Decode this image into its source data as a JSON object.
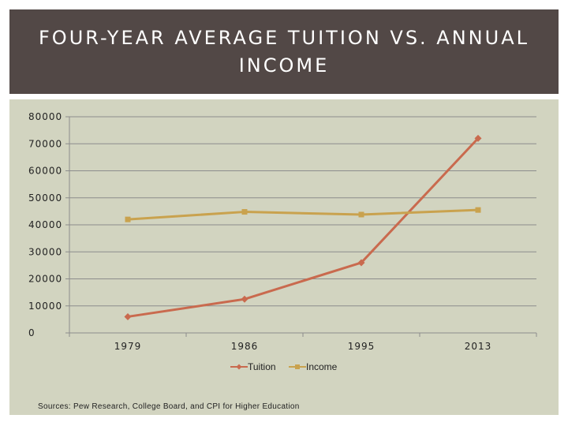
{
  "slide": {
    "title": "FOUR-YEAR AVERAGE TUITION VS. ANNUAL INCOME",
    "source_note": "Sources: Pew Research, College Board, and CPI for Higher Education"
  },
  "colors": {
    "title_band": "#524846",
    "chart_background": "#d2d4c0",
    "tuition": "#c96a4e",
    "income": "#c9a24e"
  },
  "chart_data": {
    "type": "line",
    "title": "",
    "xlabel": "",
    "ylabel": "",
    "categories": [
      "1979",
      "1986",
      "1995",
      "2013"
    ],
    "ylim": [
      0,
      80000
    ],
    "yticks": [
      0,
      10000,
      20000,
      30000,
      40000,
      50000,
      60000,
      70000,
      80000
    ],
    "grid": true,
    "legend": "bottom",
    "series": [
      {
        "name": "Tuition",
        "values": [
          6000,
          12500,
          26000,
          72000
        ],
        "marker": "diamond"
      },
      {
        "name": "Income",
        "values": [
          42000,
          44800,
          43800,
          45500
        ],
        "marker": "square"
      }
    ]
  }
}
